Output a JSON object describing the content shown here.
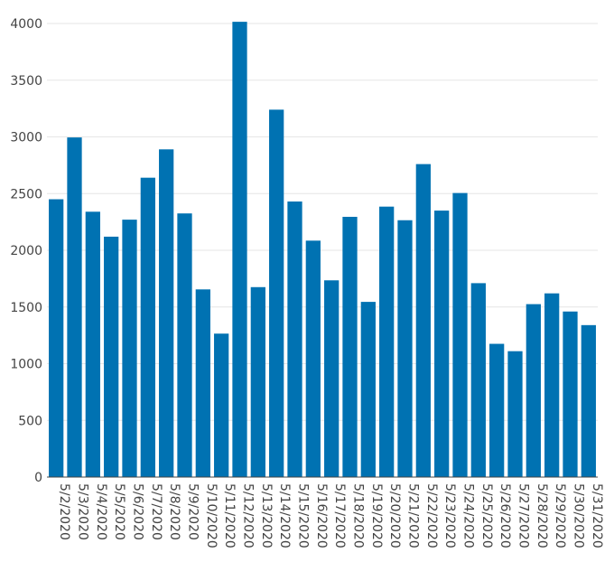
{
  "chart_data": {
    "type": "bar",
    "title": "",
    "xlabel": "",
    "ylabel": "",
    "ylim": [
      0,
      4000
    ],
    "yticks": [
      0,
      500,
      1000,
      1500,
      2000,
      2500,
      3000,
      3500,
      4000
    ],
    "grid": true,
    "bar_color": "#0072b2",
    "categories": [
      "5/2/2020",
      "5/3/2020",
      "5/4/2020",
      "5/5/2020",
      "5/6/2020",
      "5/7/2020",
      "5/8/2020",
      "5/9/2020",
      "5/10/2020",
      "5/11/2020",
      "5/12/2020",
      "5/13/2020",
      "5/14/2020",
      "5/15/2020",
      "5/16/2020",
      "5/17/2020",
      "5/18/2020",
      "5/19/2020",
      "5/20/2020",
      "5/21/2020",
      "5/22/2020",
      "5/23/2020",
      "5/24/2020",
      "5/25/2020",
      "5/26/2020",
      "5/27/2020",
      "5/28/2020",
      "5/29/2020",
      "5/30/2020",
      "5/31/2020"
    ],
    "values": [
      2450,
      2995,
      2340,
      2120,
      2270,
      2640,
      2890,
      2325,
      1655,
      1265,
      4015,
      1675,
      3240,
      2430,
      2085,
      1735,
      2295,
      1545,
      2385,
      2265,
      2760,
      2350,
      2505,
      1710,
      1175,
      1110,
      1525,
      1620,
      1460,
      1340
    ]
  }
}
